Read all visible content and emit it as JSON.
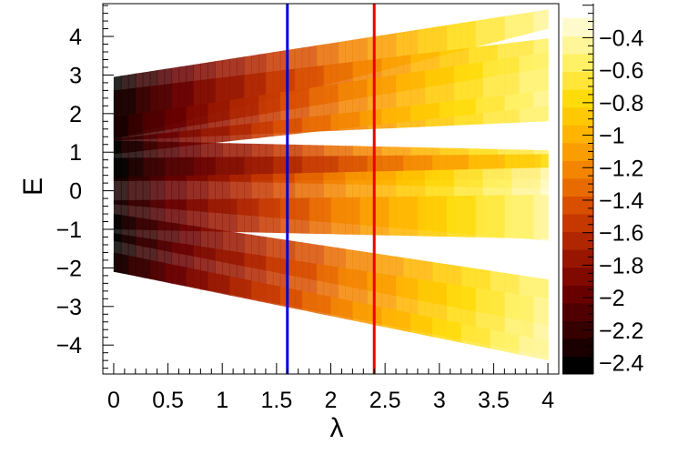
{
  "chart_data": {
    "type": "heatmap",
    "title": "",
    "xlabel": "λ",
    "ylabel": "E",
    "xlim": [
      -0.1,
      4.1
    ],
    "ylim": [
      -4.75,
      4.85
    ],
    "x_ticks": [
      {
        "value": 0,
        "label": "0"
      },
      {
        "value": 0.5,
        "label": "0.5"
      },
      {
        "value": 1,
        "label": "1"
      },
      {
        "value": 1.5,
        "label": "1.5"
      },
      {
        "value": 2,
        "label": "2"
      },
      {
        "value": 2.5,
        "label": "2.5"
      },
      {
        "value": 3,
        "label": "3"
      },
      {
        "value": 3.5,
        "label": "3.5"
      },
      {
        "value": 4,
        "label": "4"
      }
    ],
    "y_ticks": [
      {
        "value": -4,
        "label": "−4"
      },
      {
        "value": -3,
        "label": "−3"
      },
      {
        "value": -2,
        "label": "−2"
      },
      {
        "value": -1,
        "label": "−1"
      },
      {
        "value": 0,
        "label": "0"
      },
      {
        "value": 1,
        "label": "1"
      },
      {
        "value": 2,
        "label": "2"
      },
      {
        "value": 3,
        "label": "3"
      },
      {
        "value": 4,
        "label": "4"
      }
    ],
    "colorbar": {
      "zlim": [
        -2.47,
        -0.28
      ],
      "ticks": [
        {
          "value": -0.4,
          "label": "−0.4"
        },
        {
          "value": -0.6,
          "label": "−0.6"
        },
        {
          "value": -0.8,
          "label": "−0.8"
        },
        {
          "value": -1,
          "label": "−1"
        },
        {
          "value": -1.2,
          "label": "−1.2"
        },
        {
          "value": -1.4,
          "label": "−1.4"
        },
        {
          "value": -1.6,
          "label": "−1.6"
        },
        {
          "value": -1.8,
          "label": "−1.8"
        },
        {
          "value": -2,
          "label": "−2"
        },
        {
          "value": -2.2,
          "label": "−2.2"
        },
        {
          "value": -2.4,
          "label": "−2.4"
        }
      ],
      "levels": 20,
      "palette": [
        "#000000",
        "#3a0000",
        "#6e0000",
        "#a01a00",
        "#d04000",
        "#f07a00",
        "#ffae00",
        "#ffd800",
        "#fff060",
        "#fffacc"
      ]
    },
    "vertical_lines": [
      {
        "x": 1.6,
        "color": "#0000dd"
      },
      {
        "x": 2.4,
        "color": "#ee0000"
      }
    ],
    "bands": [
      {
        "x0": 0,
        "x1": 4,
        "top0": 2.95,
        "bot0": 1.35,
        "top1": 4.7,
        "bot1": 4.2,
        "z0": -2.45,
        "z1": -0.45
      },
      {
        "x0": 0,
        "x1": 4,
        "top0": 2.6,
        "bot0": 1.35,
        "top1": 3.95,
        "bot1": 3.2,
        "z0": -2.4,
        "z1": -0.55
      },
      {
        "x0": 0,
        "x1": 4,
        "top0": 1.9,
        "bot0": 1.3,
        "top1": 3.6,
        "bot1": 1.8,
        "z0": -2.35,
        "z1": -0.5
      },
      {
        "x0": 0,
        "x1": 4,
        "top0": 1.35,
        "bot0": 0.95,
        "top1": 2.6,
        "bot1": 2.2,
        "z0": -2.35,
        "z1": -0.45
      },
      {
        "x0": 0,
        "x1": 4,
        "top0": 1.3,
        "bot0": 0.3,
        "top1": 1.05,
        "bot1": 0.05,
        "z0": -2.45,
        "z1": -0.55
      },
      {
        "x0": 0,
        "x1": 4,
        "top0": 0.85,
        "bot0": 0.25,
        "top1": 0.95,
        "bot1": 0.3,
        "z0": -2.45,
        "z1": -0.8
      },
      {
        "x0": 0,
        "x1": 4,
        "top0": 0.35,
        "bot0": -0.35,
        "top1": 0.6,
        "bot1": -1.3,
        "z0": -2.4,
        "z1": -0.35
      },
      {
        "x0": 0,
        "x1": 4,
        "top0": -0.25,
        "bot0": -1.0,
        "top1": -0.1,
        "bot1": -1.25,
        "z0": -2.4,
        "z1": -0.45
      },
      {
        "x0": 0,
        "x1": 4,
        "top0": -0.6,
        "bot0": -1.3,
        "top1": -2.3,
        "bot1": -3.5,
        "z0": -2.45,
        "z1": -0.5
      },
      {
        "x0": 0,
        "x1": 4,
        "top0": -1.1,
        "bot0": -2.1,
        "top1": -2.8,
        "bot1": -4.3,
        "z0": -2.45,
        "z1": -0.45
      },
      {
        "x0": 0,
        "x1": 4,
        "top0": -1.6,
        "bot0": -2.1,
        "top1": -3.9,
        "bot1": -4.4,
        "z0": -2.4,
        "z1": -0.4
      }
    ]
  }
}
